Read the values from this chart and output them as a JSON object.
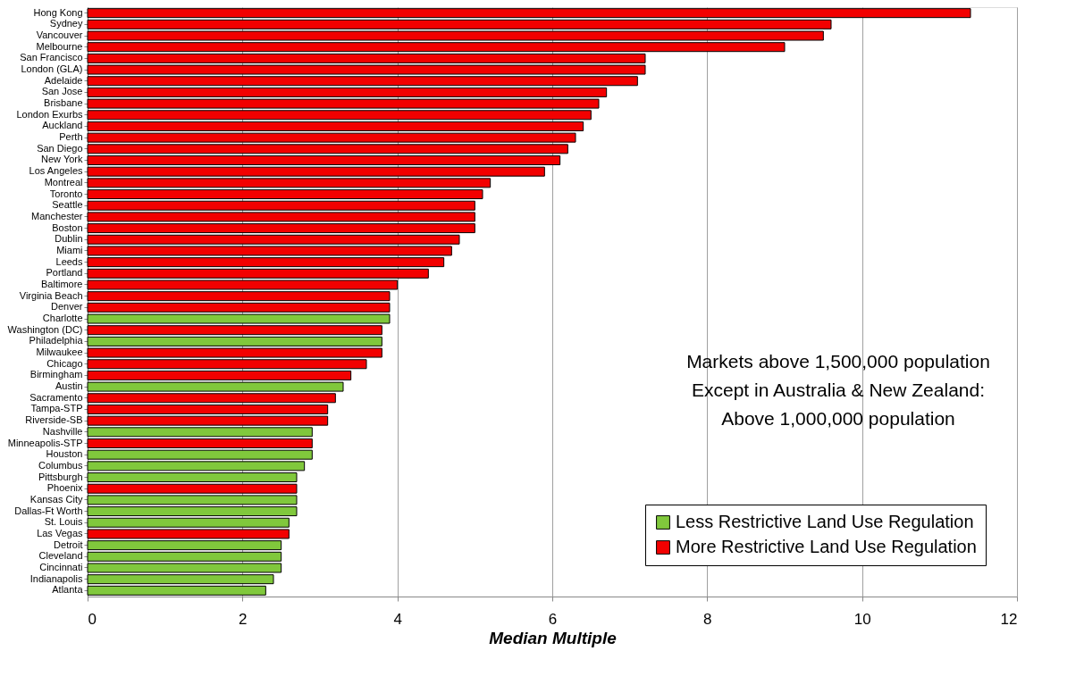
{
  "chart_data": {
    "type": "bar",
    "orientation": "horizontal",
    "xlabel": "Median Multiple",
    "categories": [
      "Hong Kong",
      "Sydney",
      "Vancouver",
      "Melbourne",
      "San Francisco",
      "London (GLA)",
      "Adelaide",
      "San Jose",
      "Brisbane",
      "London Exurbs",
      "Auckland",
      "Perth",
      "San Diego",
      "New York",
      "Los Angeles",
      "Montreal",
      "Toronto",
      "Seattle",
      "Manchester",
      "Boston",
      "Dublin",
      "Miami",
      "Leeds",
      "Portland",
      "Baltimore",
      "Virginia Beach",
      "Denver",
      "Charlotte",
      "Washington (DC)",
      "Philadelphia",
      "Milwaukee",
      "Chicago",
      "Birmingham",
      "Austin",
      "Sacramento",
      "Tampa-STP",
      "Riverside-SB",
      "Nashville",
      "Minneapolis-STP",
      "Houston",
      "Columbus",
      "Pittsburgh",
      "Phoenix",
      "Kansas City",
      "Dallas-Ft Worth",
      "St. Louis",
      "Las Vegas",
      "Detroit",
      "Cleveland",
      "Cincinnati",
      "Indianapolis",
      "Atlanta"
    ],
    "series": [
      {
        "name": "Less Restrictive Land Use Regulation",
        "color": "#80c83c",
        "values": [
          null,
          null,
          null,
          null,
          null,
          null,
          null,
          null,
          null,
          null,
          null,
          null,
          null,
          null,
          null,
          null,
          null,
          null,
          null,
          null,
          null,
          null,
          null,
          null,
          null,
          null,
          null,
          3.9,
          null,
          3.8,
          null,
          null,
          null,
          3.3,
          null,
          null,
          null,
          2.9,
          null,
          2.9,
          2.8,
          2.7,
          null,
          2.7,
          2.7,
          2.6,
          null,
          2.5,
          2.5,
          2.5,
          2.4,
          2.3
        ]
      },
      {
        "name": "More Restrictive Land Use Regulation",
        "color": "#f20000",
        "values": [
          11.4,
          9.6,
          9.5,
          9.0,
          7.2,
          7.2,
          7.1,
          6.7,
          6.6,
          6.5,
          6.4,
          6.3,
          6.2,
          6.1,
          5.9,
          5.2,
          5.1,
          5.0,
          5.0,
          5.0,
          4.8,
          4.7,
          4.6,
          4.4,
          4.0,
          3.9,
          3.9,
          null,
          3.8,
          null,
          3.8,
          3.6,
          3.4,
          null,
          3.2,
          3.1,
          3.1,
          null,
          2.9,
          null,
          null,
          null,
          2.7,
          null,
          null,
          null,
          2.6,
          null,
          null,
          null,
          null,
          null
        ]
      }
    ],
    "xlim": [
      0,
      12
    ],
    "xticks": [
      0,
      2,
      4,
      6,
      8,
      10,
      12
    ],
    "grid": "x",
    "legend": "bottom right",
    "annotations": [
      "Markets above 1,500,000 population",
      "Except in Australia & New Zealand:",
      "Above 1,000,000 population"
    ]
  }
}
